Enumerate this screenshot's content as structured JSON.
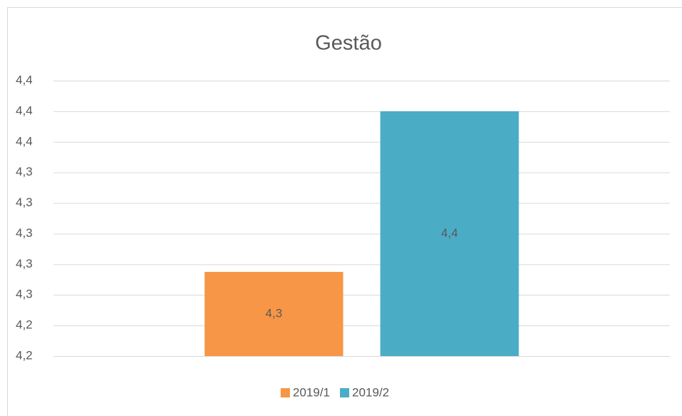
{
  "chart_data": {
    "type": "bar",
    "title": "Gestão",
    "categories": [
      null
    ],
    "series": [
      {
        "name": "2019/1",
        "color": "#f79646",
        "values": [
          4.275
        ],
        "value_labels": [
          "4,3"
        ]
      },
      {
        "name": "2019/2",
        "color": "#4bacc6",
        "values": [
          4.38
        ],
        "value_labels": [
          "4,4"
        ]
      }
    ],
    "ylim": [
      4.22,
      4.4
    ],
    "yticks": [
      {
        "value": 4.22,
        "label": "4,2"
      },
      {
        "value": 4.24,
        "label": "4,2"
      },
      {
        "value": 4.26,
        "label": "4,3"
      },
      {
        "value": 4.28,
        "label": "4,3"
      },
      {
        "value": 4.3,
        "label": "4,3"
      },
      {
        "value": 4.32,
        "label": "4,3"
      },
      {
        "value": 4.34,
        "label": "4,3"
      },
      {
        "value": 4.36,
        "label": "4,4"
      },
      {
        "value": 4.38,
        "label": "4,4"
      },
      {
        "value": 4.4,
        "label": "4,4"
      }
    ],
    "grid": true,
    "legend": "bottom"
  }
}
